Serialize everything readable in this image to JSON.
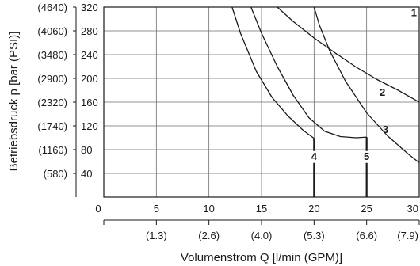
{
  "chart_data": {
    "type": "line",
    "title": "",
    "xlabel": "Volumenstrom Q [l/min (GPM)]",
    "ylabel": "Betriebsdruck p [bar (PSI)]",
    "xlim": [
      0,
      30
    ],
    "ylim": [
      0,
      320
    ],
    "grid": true,
    "x_ticks": [
      {
        "value": 0,
        "label": "0"
      },
      {
        "value": 5,
        "label": "5"
      },
      {
        "value": 10,
        "label": "10"
      },
      {
        "value": 15,
        "label": "15"
      },
      {
        "value": 20,
        "label": "20"
      },
      {
        "value": 25,
        "label": "25"
      },
      {
        "value": 30,
        "label": "30"
      }
    ],
    "x_secondary_ticks": [
      {
        "value": 5,
        "label": "(1.3)"
      },
      {
        "value": 10,
        "label": "(2.6)"
      },
      {
        "value": 15,
        "label": "(4.0)"
      },
      {
        "value": 20,
        "label": "(5.3)"
      },
      {
        "value": 25,
        "label": "(6.6)"
      },
      {
        "value": 30,
        "label": "(7.9)"
      }
    ],
    "y_ticks": [
      {
        "value": 320,
        "label": "320"
      },
      {
        "value": 280,
        "label": "280"
      },
      {
        "value": 240,
        "label": "240"
      },
      {
        "value": 200,
        "label": "200"
      },
      {
        "value": 160,
        "label": "160"
      },
      {
        "value": 120,
        "label": "120"
      },
      {
        "value": 80,
        "label": "80"
      },
      {
        "value": 40,
        "label": "40"
      }
    ],
    "y_secondary_ticks": [
      {
        "value": 320,
        "label": "(4640)"
      },
      {
        "value": 280,
        "label": "(4060)"
      },
      {
        "value": 240,
        "label": "(3480)"
      },
      {
        "value": 200,
        "label": "(2900)"
      },
      {
        "value": 160,
        "label": "(2320)"
      },
      {
        "value": 120,
        "label": "(1740)"
      },
      {
        "value": 80,
        "label": "(1160)"
      },
      {
        "value": 40,
        "label": "(580)"
      }
    ],
    "series": [
      {
        "name": "1",
        "label_at": [
          29.5,
          305
        ],
        "points": [
          [
            30,
            320
          ]
        ]
      },
      {
        "name": "2",
        "label_at": [
          26.5,
          171
        ],
        "points": [
          [
            16.5,
            320
          ],
          [
            18,
            296
          ],
          [
            20,
            268
          ],
          [
            22,
            243
          ],
          [
            24,
            219
          ],
          [
            26,
            198
          ],
          [
            28,
            180
          ],
          [
            30,
            160
          ]
        ]
      },
      {
        "name": "3",
        "label_at": [
          26.8,
          108
        ],
        "points": [
          [
            20,
            320
          ],
          [
            20.5,
            290
          ],
          [
            21.5,
            246
          ],
          [
            23,
            195
          ],
          [
            25,
            142
          ],
          [
            27,
            103
          ],
          [
            29,
            72
          ],
          [
            30,
            58
          ]
        ]
      },
      {
        "name": "4",
        "label_at": [
          20,
          63
        ],
        "points": [
          [
            12.2,
            320
          ],
          [
            13,
            276
          ],
          [
            14.5,
            212
          ],
          [
            16,
            168
          ],
          [
            17.5,
            137
          ],
          [
            19,
            112
          ],
          [
            20,
            99
          ],
          [
            20,
            0
          ]
        ]
      },
      {
        "name": "5",
        "label_at": [
          25,
          63
        ],
        "points": [
          [
            14,
            320
          ],
          [
            15,
            276
          ],
          [
            16.5,
            220
          ],
          [
            18,
            172
          ],
          [
            19.5,
            134
          ],
          [
            21,
            111
          ],
          [
            22.5,
            102
          ],
          [
            24,
            100
          ],
          [
            24.9,
            101
          ],
          [
            25,
            101
          ],
          [
            25,
            0
          ]
        ]
      }
    ]
  }
}
